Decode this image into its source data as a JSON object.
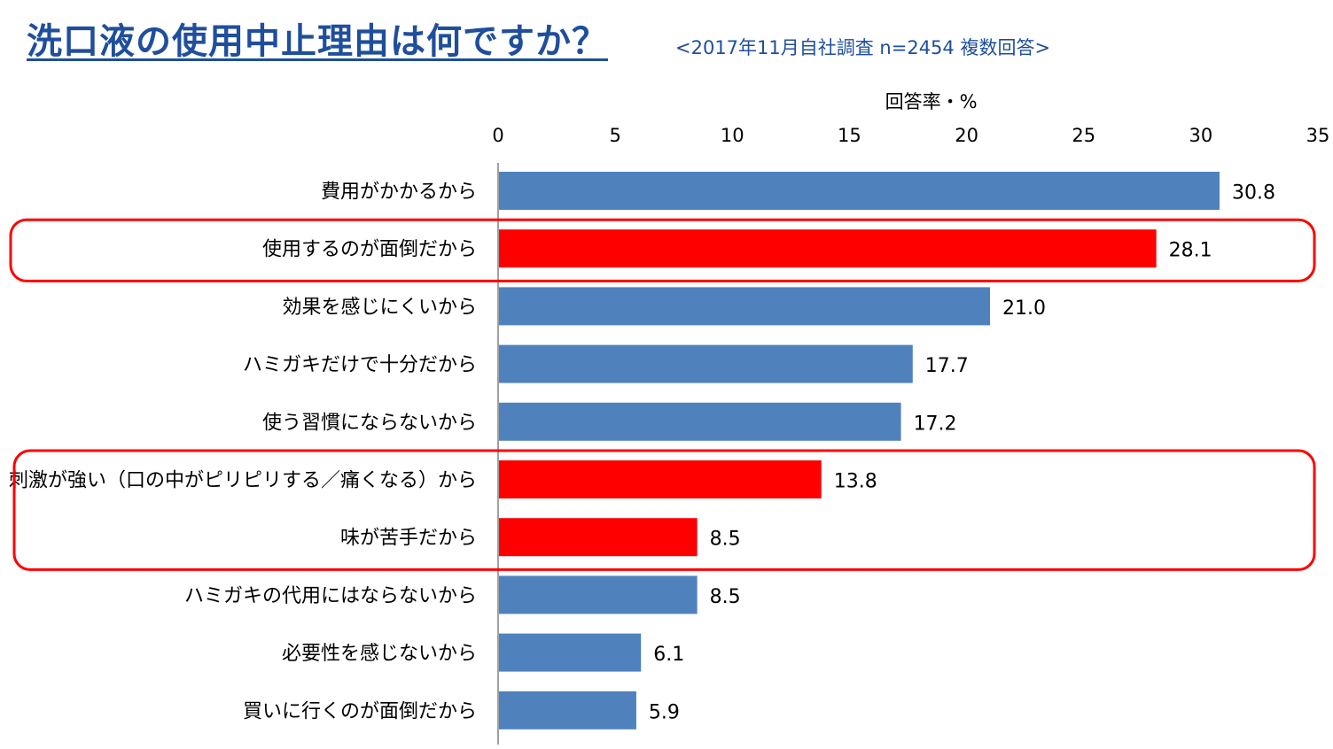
{
  "page": {
    "title": "洗口液の使用中止理由は何ですか？",
    "subtitle": "<2017年11月自社調査 n=2454 複数回答>"
  },
  "colors": {
    "title": "#1f4e9c",
    "bar_default": "#4f81bd",
    "bar_highlight": "#ff0000",
    "highlight_box": "#ff0000",
    "axis": "#808080",
    "text": "#000000"
  },
  "chart_data": {
    "type": "bar",
    "orientation": "horizontal",
    "xlabel": "回答率・%",
    "xlim": [
      0,
      35
    ],
    "xticks": [
      0,
      5,
      10,
      15,
      20,
      25,
      30,
      35
    ],
    "grid": false,
    "categories": [
      "費用がかかるから",
      "使用するのが面倒だから",
      "効果を感じにくいから",
      "ハミガキだけで十分だから",
      "使う習慣にならないから",
      "刺激が強い（口の中がピリピリする／痛くなる）から",
      "味が苦手だから",
      "ハミガキの代用にはならないから",
      "必要性を感じないから",
      "買いに行くのが面倒だから"
    ],
    "values": [
      30.8,
      28.1,
      21.0,
      17.7,
      17.2,
      13.8,
      8.5,
      8.5,
      6.1,
      5.9
    ],
    "value_labels": [
      "30.8",
      "28.1",
      "21.0",
      "17.7",
      "17.2",
      "13.8",
      "8.5",
      "8.5",
      "6.1",
      "5.9"
    ],
    "highlighted": [
      false,
      true,
      false,
      false,
      false,
      true,
      true,
      false,
      false,
      false
    ],
    "highlight_groups": [
      [
        1
      ],
      [
        5,
        6
      ]
    ]
  }
}
